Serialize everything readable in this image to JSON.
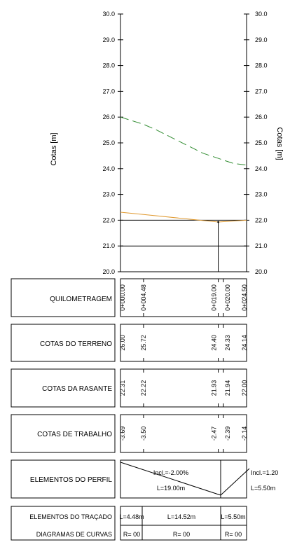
{
  "chart_data": {
    "type": "line",
    "ylabel_left": "Cotas [m]",
    "ylabel_right": "Cotas [m]",
    "ylim": [
      20.0,
      30.0
    ],
    "y_ticks": [
      "20.0",
      "21.0",
      "22.0",
      "23.0",
      "24.0",
      "25.0",
      "26.0",
      "27.0",
      "28.0",
      "29.0",
      "30.0"
    ],
    "xlim": [
      0,
      24.5
    ],
    "terrain": {
      "x": [
        0,
        4.48,
        7,
        10,
        13,
        16,
        19,
        20,
        22,
        24.5
      ],
      "y": [
        26.0,
        25.72,
        25.5,
        25.2,
        24.9,
        24.6,
        24.4,
        24.33,
        24.2,
        24.14
      ]
    },
    "grade": {
      "x": [
        0,
        4.48,
        19.0,
        24.5
      ],
      "y": [
        22.31,
        22.22,
        21.93,
        22.0
      ]
    },
    "reference_lines_y": [
      22.0,
      21.0
    ],
    "vertex_x": 19.0,
    "stations_x": [
      0,
      4.48,
      19,
      20,
      24.5
    ]
  },
  "table": {
    "quilometragem": {
      "label": "QUILOMETRAGEM",
      "values": [
        "0+000.00",
        "0+004.48",
        "0+019.00",
        "0+020.00",
        "0+024.50"
      ]
    },
    "cotas_terreno": {
      "label": "COTAS DO TERRENO",
      "values": [
        "26.00",
        "25.72",
        "24.40",
        "24.33",
        "24.14"
      ]
    },
    "cotas_rasante": {
      "label": "COTAS DA RASANTE",
      "values": [
        "22.31",
        "22.22",
        "21.93",
        "21.94",
        "22.00"
      ]
    },
    "cotas_trabalho": {
      "label": "COTAS DE TRABALHO",
      "values": [
        "-3.69",
        "-3.50",
        "-2.47",
        "-2.39",
        "-2.14"
      ]
    },
    "elementos_perfil": {
      "label": "ELEMENTOS DO PERFIL",
      "incl1": "Incl.=-2.00%",
      "len1": "L=19.00m",
      "incl2": "Incl.=1.20",
      "len2": "L=5.50m"
    },
    "elementos_tracado": {
      "label": "ELEMENTOS DO TRAÇADO",
      "segments": [
        "L=4.48m",
        "L=14.52m",
        "L=5.50m"
      ]
    },
    "diagramas_curvas": {
      "label": "DIAGRAMAS DE CURVAS",
      "segments": [
        "R= 00",
        "R= 00",
        "R= 00"
      ]
    }
  },
  "colors": {
    "terrain": "#2e8b2e",
    "grade": "#e09a30",
    "axis": "#000000"
  }
}
